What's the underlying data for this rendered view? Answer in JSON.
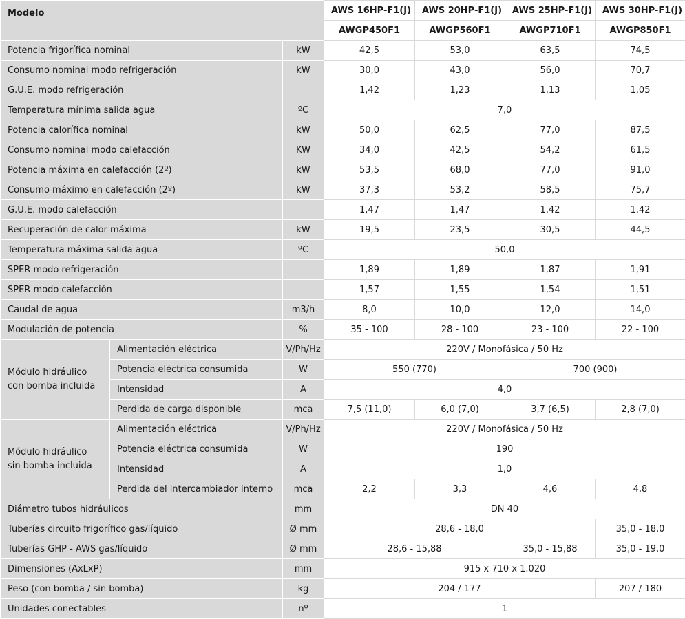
{
  "header": {
    "modelo_label": "Modelo",
    "models": [
      "AWS 16HP-F1(J)",
      "AWS 20HP-F1(J)",
      "AWS 25HP-F1(J)",
      "AWS 30HP-F1(J)"
    ],
    "codes": [
      "AWGP450F1",
      "AWGP560F1",
      "AWGP710F1",
      "AWGP850F1"
    ]
  },
  "rows": {
    "pot_frig": {
      "label": "Potencia frigorífica nominal",
      "unit": "kW",
      "v": [
        "42,5",
        "53,0",
        "63,5",
        "74,5"
      ]
    },
    "cons_refr": {
      "label": "Consumo nominal modo refrigeración",
      "unit": "kW",
      "v": [
        "30,0",
        "43,0",
        "56,0",
        "70,7"
      ]
    },
    "gue_refr": {
      "label": "G.U.E. modo refrigeración",
      "unit": "",
      "v": [
        "1,42",
        "1,23",
        "1,13",
        "1,05"
      ]
    },
    "temp_min": {
      "label": "Temperatura mínima salida agua",
      "unit": "ºC",
      "v": [
        "7,0"
      ]
    },
    "pot_cal": {
      "label": "Potencia calorífica nominal",
      "unit": "kW",
      "v": [
        "50,0",
        "62,5",
        "77,0",
        "87,5"
      ]
    },
    "cons_cal": {
      "label": "Consumo nominal modo calefacción",
      "unit": "KW",
      "v": [
        "34,0",
        "42,5",
        "54,2",
        "61,5"
      ]
    },
    "pot_max_cal": {
      "label": "Potencia máxima en calefacción (2º)",
      "unit": "kW",
      "v": [
        "53,5",
        "68,0",
        "77,0",
        "91,0"
      ]
    },
    "cons_max_cal": {
      "label": "Consumo máximo en calefacción (2º)",
      "unit": "kW",
      "v": [
        "37,3",
        "53,2",
        "58,5",
        "75,7"
      ]
    },
    "gue_cal": {
      "label": "G.U.E. modo calefacción",
      "unit": "",
      "v": [
        "1,47",
        "1,47",
        "1,42",
        "1,42"
      ]
    },
    "recup": {
      "label": "Recuperación de calor máxima",
      "unit": "kW",
      "v": [
        "19,5",
        "23,5",
        "30,5",
        "44,5"
      ]
    },
    "temp_max": {
      "label": "Temperatura máxima salida agua",
      "unit": "ºC",
      "v": [
        "50,0"
      ]
    },
    "sper_refr": {
      "label": "SPER modo refrigeración",
      "unit": "",
      "v": [
        "1,89",
        "1,89",
        "1,87",
        "1,91"
      ]
    },
    "sper_cal": {
      "label": "SPER modo calefacción",
      "unit": "",
      "v": [
        "1,57",
        "1,55",
        "1,54",
        "1,51"
      ]
    },
    "caudal": {
      "label": "Caudal de agua",
      "unit": "m3/h",
      "v": [
        "8,0",
        "10,0",
        "12,0",
        "14,0"
      ]
    },
    "modul": {
      "label": "Modulación de potencia",
      "unit": "%",
      "v": [
        "35 - 100",
        "28 - 100",
        "23 - 100",
        "22 - 100"
      ]
    },
    "diam": {
      "label": "Diámetro tubos hidráulicos",
      "unit": "mm",
      "v": [
        "DN 40"
      ]
    },
    "tub_frig": {
      "label": "Tuberías circuito frigorífico gas/líquido",
      "unit": "Ø mm",
      "v": [
        "28,6 - 18,0",
        "35,0 - 18,0"
      ]
    },
    "tub_ghp": {
      "label": "Tuberías GHP - AWS gas/líquido",
      "unit": "Ø mm",
      "v": [
        "28,6 - 15,88",
        "35,0 - 15,88",
        "35,0 - 19,0"
      ]
    },
    "dim": {
      "label": "Dimensiones (AxLxP)",
      "unit": "mm",
      "v": [
        "915 x 710 x 1.020"
      ]
    },
    "peso": {
      "label": "Peso (con bomba / sin bomba)",
      "unit": "kg",
      "v": [
        "204 / 177",
        "207 / 180"
      ]
    },
    "unid": {
      "label": "Unidades conectables",
      "unit": "nº",
      "v": [
        "1"
      ]
    }
  },
  "group_con": {
    "title": "Módulo hidráulico con bomba incluida",
    "alim": {
      "label": "Alimentación eléctrica",
      "unit": "V/Ph/Hz",
      "v": [
        "220V / Monofásica / 50 Hz"
      ]
    },
    "pot": {
      "label": "Potencia eléctrica consumida",
      "unit": "W",
      "v": [
        "550 (770)",
        "700 (900)"
      ]
    },
    "int": {
      "label": "Intensidad",
      "unit": "A",
      "v": [
        "4,0"
      ]
    },
    "perd": {
      "label": "Perdida de carga disponible",
      "unit": "mca",
      "v": [
        "7,5 (11,0)",
        "6,0 (7,0)",
        "3,7 (6,5)",
        "2,8 (7,0)"
      ]
    }
  },
  "group_sin": {
    "title": "Módulo hidráulico sin bomba incluida",
    "alim": {
      "label": "Alimentación eléctrica",
      "unit": "V/Ph/Hz",
      "v": [
        "220V / Monofásica / 50 Hz"
      ]
    },
    "pot": {
      "label": "Potencia eléctrica consumida",
      "unit": "W",
      "v": [
        "190"
      ]
    },
    "int": {
      "label": "Intensidad",
      "unit": "A",
      "v": [
        "1,0"
      ]
    },
    "perd": {
      "label": "Perdida del intercambiador interno",
      "unit": "mca",
      "v": [
        "2,2",
        "3,3",
        "4,6",
        "4,8"
      ]
    }
  }
}
